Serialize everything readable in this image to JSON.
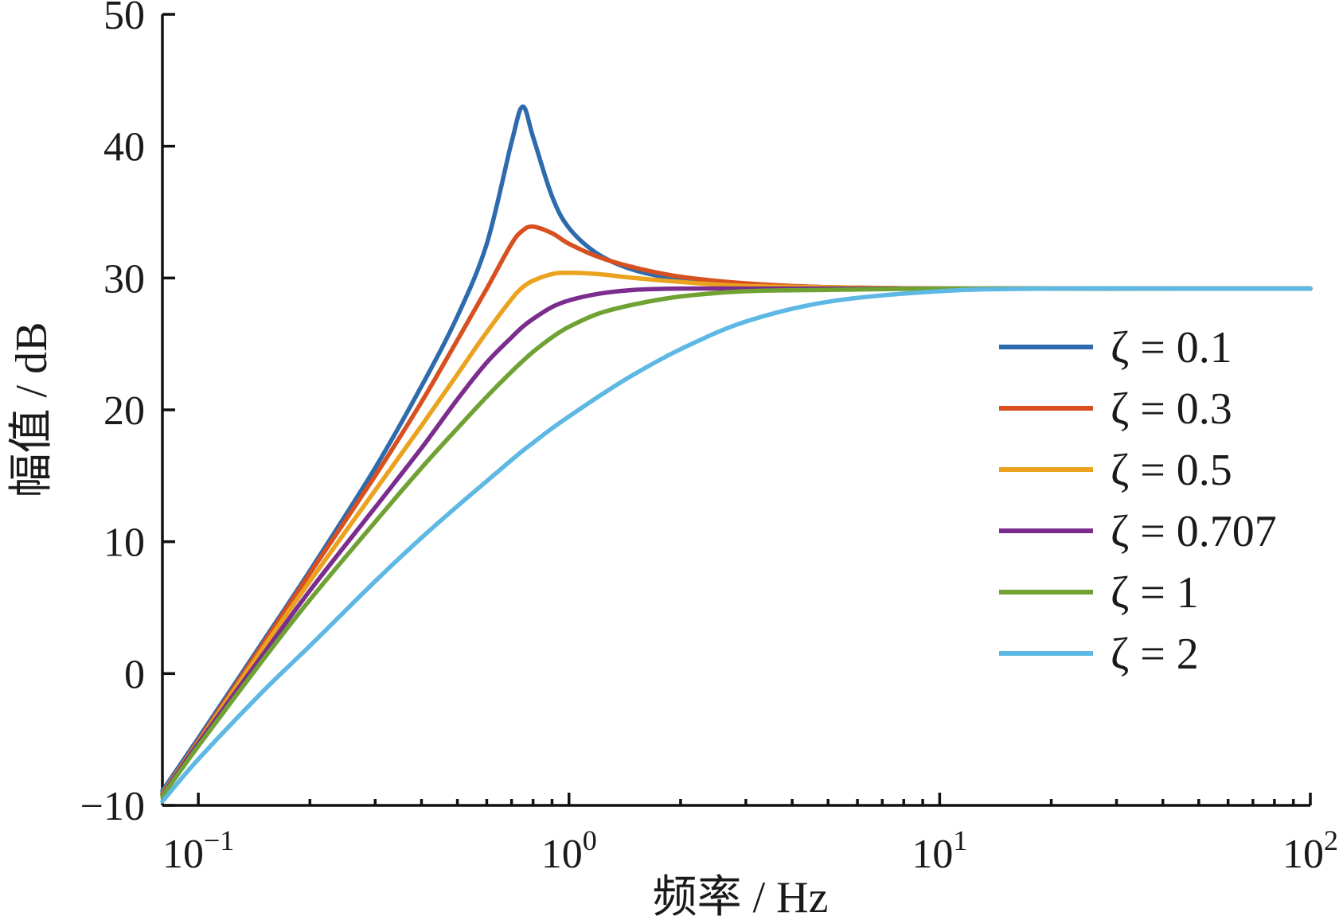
{
  "chart_data": {
    "type": "line",
    "title": "",
    "xlabel": "频率 / Hz",
    "ylabel": "幅值 / dB",
    "xscale": "log",
    "xlim": [
      0.08,
      100
    ],
    "ylim": [
      -10,
      50
    ],
    "x_ticks": [
      {
        "value": 0.1,
        "base": "10",
        "exp": "−1"
      },
      {
        "value": 1,
        "base": "10",
        "exp": "0"
      },
      {
        "value": 10,
        "base": "10",
        "exp": "1"
      },
      {
        "value": 100,
        "base": "10",
        "exp": "2"
      }
    ],
    "y_ticks": [
      {
        "value": 50,
        "label": "50"
      },
      {
        "value": 40,
        "label": "40"
      },
      {
        "value": 30,
        "label": "30"
      },
      {
        "value": 20,
        "label": "20"
      },
      {
        "value": 10,
        "label": "10"
      },
      {
        "value": 0,
        "label": "0"
      },
      {
        "value": -10,
        "label": "−10"
      }
    ],
    "grid": false,
    "legend_position": "right",
    "x": [
      0.08,
      0.1,
      0.15,
      0.2,
      0.3,
      0.4,
      0.5,
      0.6,
      0.7,
      0.75,
      0.8,
      0.9,
      1.0,
      1.2,
      1.5,
      2,
      3,
      5,
      10,
      20,
      50,
      100
    ],
    "series": [
      {
        "name": "ζ = 0.1",
        "color": "#2e6bad",
        "values": [
          -8.9,
          -4.9,
          2.5,
          7.8,
          15.6,
          21.8,
          27.1,
          32.6,
          40.3,
          43.0,
          40.7,
          36.2,
          33.8,
          31.8,
          30.6,
          29.9,
          29.5,
          29.3,
          29.2,
          29.2,
          29.2,
          29.2
        ]
      },
      {
        "name": "ζ = 0.3",
        "color": "#d8501f",
        "values": [
          -9.1,
          -5.1,
          2.3,
          7.6,
          15.0,
          20.6,
          25.3,
          29.2,
          32.6,
          33.6,
          33.9,
          33.4,
          32.6,
          31.6,
          30.8,
          30.1,
          29.6,
          29.3,
          29.2,
          29.2,
          29.2,
          29.2
        ]
      },
      {
        "name": "ζ = 0.5",
        "color": "#eaa21f",
        "values": [
          -9.1,
          -5.2,
          2.0,
          7.0,
          13.9,
          18.8,
          22.7,
          25.9,
          28.4,
          29.3,
          29.8,
          30.3,
          30.4,
          30.3,
          30.0,
          29.7,
          29.4,
          29.3,
          29.2,
          29.2,
          29.2,
          29.2
        ]
      },
      {
        "name": "ζ = 0.707",
        "color": "#7b2d8e",
        "values": [
          -9.2,
          -5.3,
          1.5,
          6.3,
          12.6,
          17.1,
          20.8,
          23.6,
          25.5,
          26.3,
          26.9,
          27.8,
          28.3,
          28.8,
          29.1,
          29.2,
          29.2,
          29.2,
          29.2,
          29.2,
          29.2,
          29.2
        ]
      },
      {
        "name": "ζ = 1",
        "color": "#6fa233",
        "values": [
          -9.3,
          -5.5,
          1.1,
          5.6,
          11.5,
          15.6,
          18.6,
          21.0,
          22.9,
          23.7,
          24.4,
          25.5,
          26.3,
          27.3,
          28.0,
          28.6,
          29.0,
          29.1,
          29.2,
          29.2,
          29.2,
          29.2
        ]
      },
      {
        "name": "ζ = 2",
        "color": "#5db8e3",
        "values": [
          -9.7,
          -6.5,
          -1.3,
          2.1,
          7.0,
          10.3,
          12.7,
          14.6,
          16.2,
          16.9,
          17.5,
          18.6,
          19.5,
          21.0,
          22.7,
          24.6,
          26.7,
          28.2,
          29.0,
          29.2,
          29.2,
          29.2
        ]
      }
    ]
  }
}
